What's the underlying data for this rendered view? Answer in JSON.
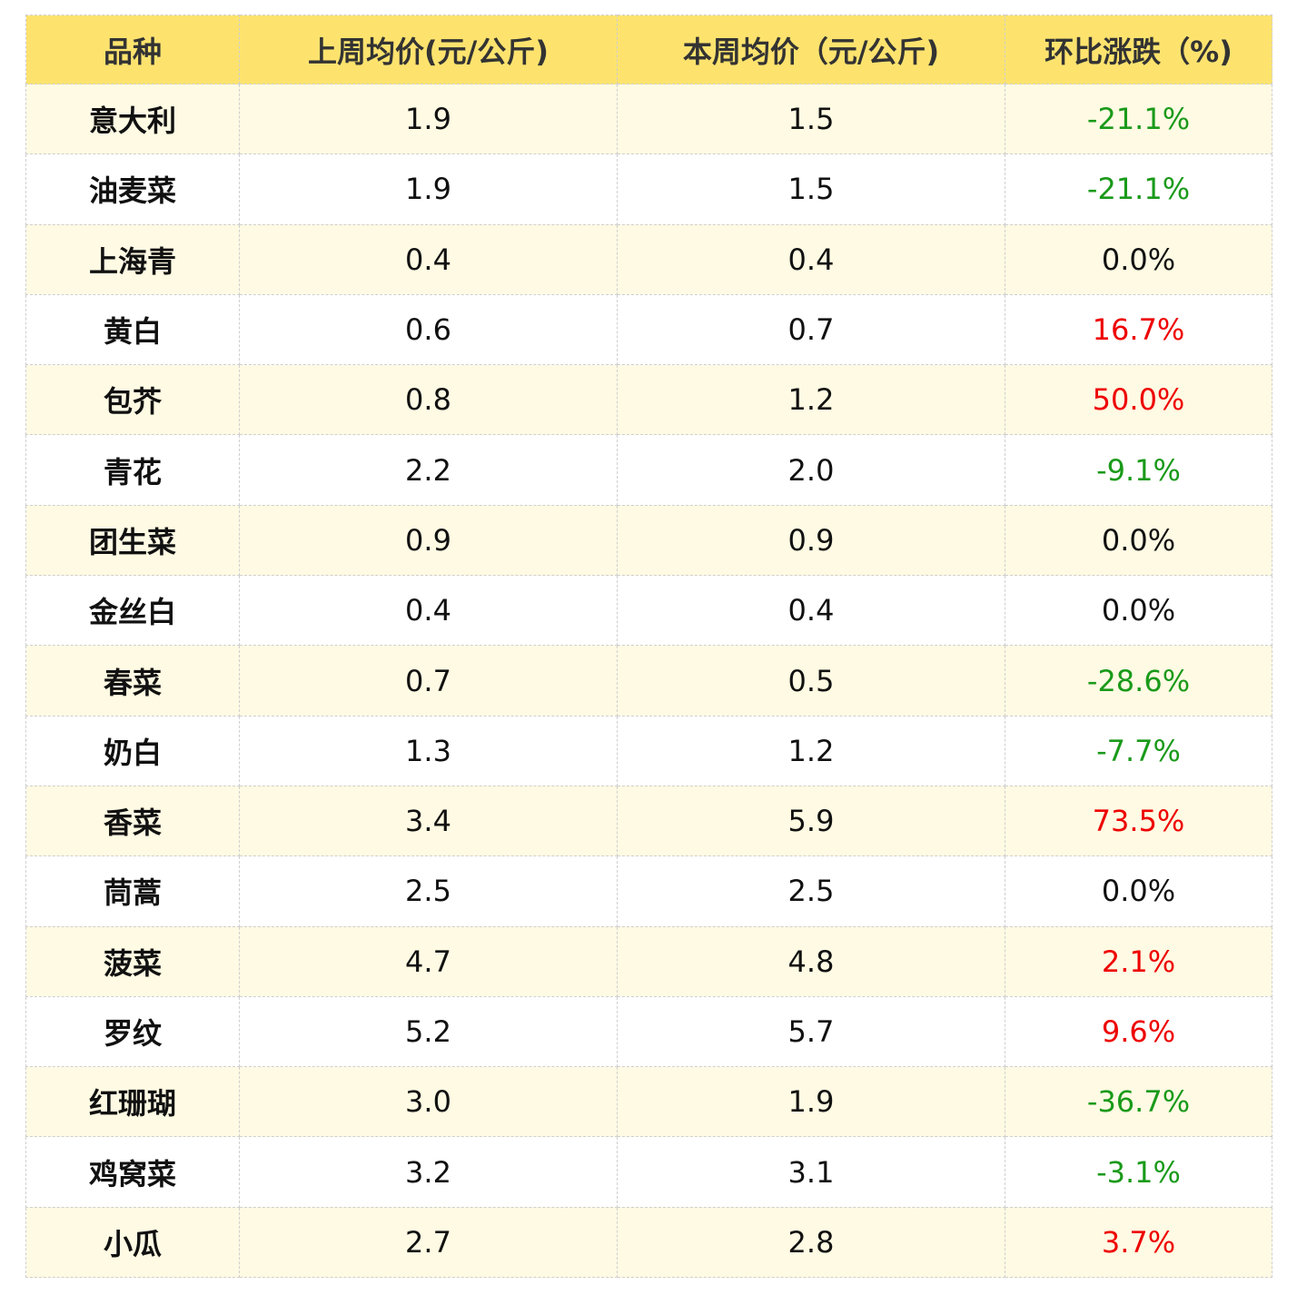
{
  "table": {
    "header": [
      "品种",
      "上周均价(元/公斤)",
      "本周均价（元/公斤)",
      "环比涨跌（%)"
    ],
    "rows": [
      [
        "意大利",
        "1.9",
        "1.5",
        "-21.1%"
      ],
      [
        "油麦菜",
        "1.9",
        "1.5",
        "-21.1%"
      ],
      [
        "上海青",
        "0.4",
        "0.4",
        "0.0%"
      ],
      [
        "黄白",
        "0.6",
        "0.7",
        "16.7%"
      ],
      [
        "包芥",
        "0.8",
        "1.2",
        "50.0%"
      ],
      [
        "青花",
        "2.2",
        "2.0",
        "-9.1%"
      ],
      [
        "团生菜",
        "0.9",
        "0.9",
        "0.0%"
      ],
      [
        "金丝白",
        "0.4",
        "0.4",
        "0.0%"
      ],
      [
        "春菜",
        "0.7",
        "0.5",
        "-28.6%"
      ],
      [
        "奶白",
        "1.3",
        "1.2",
        "-7.7%"
      ],
      [
        "香菜",
        "3.4",
        "5.9",
        "73.5%"
      ],
      [
        "茼蒿",
        "2.5",
        "2.5",
        "0.0%"
      ],
      [
        "菠菜",
        "4.7",
        "4.8",
        "2.1%"
      ],
      [
        "罗纹",
        "5.2",
        "5.7",
        "9.6%"
      ],
      [
        "红珊瑚",
        "3.0",
        "1.9",
        "-36.7%"
      ],
      [
        "鸡窝菜",
        "3.2",
        "3.1",
        "-3.1%"
      ],
      [
        "小瓜",
        "2.7",
        "2.8",
        "3.7%"
      ]
    ]
  }
}
